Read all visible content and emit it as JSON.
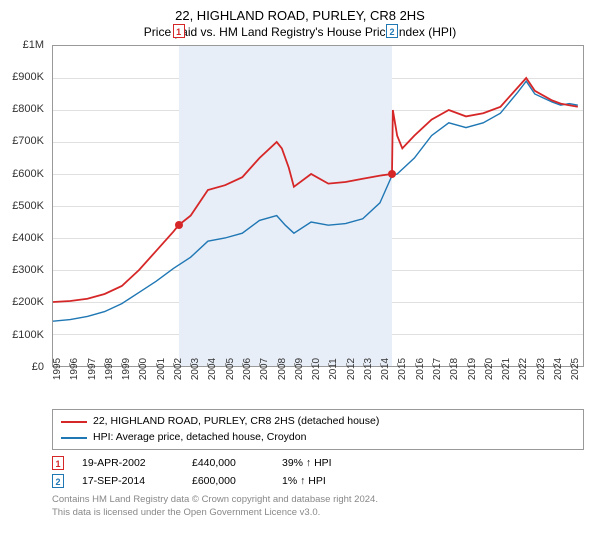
{
  "title": "22, HIGHLAND ROAD, PURLEY, CR8 2HS",
  "subtitle": "Price paid vs. HM Land Registry's House Price Index (HPI)",
  "chart": {
    "type": "line",
    "background_color": "#ffffff",
    "grid_color": "#e0e0e0",
    "axis_color": "#999999",
    "shaded_color": "#e8eef8",
    "x_years": [
      1995,
      1996,
      1997,
      1998,
      1999,
      2000,
      2001,
      2002,
      2003,
      2004,
      2005,
      2006,
      2007,
      2008,
      2009,
      2010,
      2011,
      2012,
      2013,
      2014,
      2015,
      2016,
      2017,
      2018,
      2019,
      2020,
      2021,
      2022,
      2023,
      2024,
      2025
    ],
    "xlim": [
      1995,
      2025.8
    ],
    "y_ticks": [
      "£0",
      "£100K",
      "£200K",
      "£300K",
      "£400K",
      "£500K",
      "£600K",
      "£700K",
      "£800K",
      "£900K",
      "£1M"
    ],
    "ylim": [
      0,
      1000000
    ],
    "shaded_start": 2002.3,
    "shaded_end": 2014.7,
    "sale_marker_top": -22,
    "series": [
      {
        "name": "22, HIGHLAND ROAD, PURLEY, CR8 2HS (detached house)",
        "color": "#d62728",
        "line_width": 1.8,
        "points": [
          [
            1995,
            200000
          ],
          [
            1996,
            203000
          ],
          [
            1997,
            210000
          ],
          [
            1998,
            225000
          ],
          [
            1999,
            250000
          ],
          [
            2000,
            300000
          ],
          [
            2001,
            360000
          ],
          [
            2002,
            420000
          ],
          [
            2002.3,
            440000
          ],
          [
            2003,
            470000
          ],
          [
            2004,
            550000
          ],
          [
            2005,
            565000
          ],
          [
            2006,
            590000
          ],
          [
            2007,
            650000
          ],
          [
            2008,
            700000
          ],
          [
            2008.3,
            680000
          ],
          [
            2008.7,
            620000
          ],
          [
            2009,
            560000
          ],
          [
            2010,
            600000
          ],
          [
            2011,
            570000
          ],
          [
            2012,
            575000
          ],
          [
            2013,
            585000
          ],
          [
            2014,
            595000
          ],
          [
            2014.7,
            600000
          ],
          [
            2014.75,
            800000
          ],
          [
            2015,
            720000
          ],
          [
            2015.3,
            680000
          ],
          [
            2016,
            720000
          ],
          [
            2017,
            770000
          ],
          [
            2018,
            800000
          ],
          [
            2019,
            780000
          ],
          [
            2020,
            790000
          ],
          [
            2021,
            810000
          ],
          [
            2022,
            870000
          ],
          [
            2022.5,
            900000
          ],
          [
            2023,
            860000
          ],
          [
            2024,
            830000
          ],
          [
            2024.5,
            820000
          ],
          [
            2025,
            815000
          ],
          [
            2025.5,
            810000
          ]
        ]
      },
      {
        "name": "HPI: Average price, detached house, Croydon",
        "color": "#1f77b4",
        "line_width": 1.4,
        "points": [
          [
            1995,
            140000
          ],
          [
            1996,
            145000
          ],
          [
            1997,
            155000
          ],
          [
            1998,
            170000
          ],
          [
            1999,
            195000
          ],
          [
            2000,
            230000
          ],
          [
            2001,
            265000
          ],
          [
            2002,
            305000
          ],
          [
            2003,
            340000
          ],
          [
            2004,
            390000
          ],
          [
            2005,
            400000
          ],
          [
            2006,
            415000
          ],
          [
            2007,
            455000
          ],
          [
            2008,
            470000
          ],
          [
            2008.5,
            440000
          ],
          [
            2009,
            415000
          ],
          [
            2010,
            450000
          ],
          [
            2011,
            440000
          ],
          [
            2012,
            445000
          ],
          [
            2013,
            460000
          ],
          [
            2014,
            510000
          ],
          [
            2014.7,
            595000
          ],
          [
            2015,
            600000
          ],
          [
            2016,
            650000
          ],
          [
            2017,
            720000
          ],
          [
            2018,
            760000
          ],
          [
            2019,
            745000
          ],
          [
            2020,
            760000
          ],
          [
            2021,
            790000
          ],
          [
            2022,
            855000
          ],
          [
            2022.5,
            890000
          ],
          [
            2023,
            850000
          ],
          [
            2024,
            825000
          ],
          [
            2024.5,
            815000
          ],
          [
            2025,
            820000
          ],
          [
            2025.5,
            815000
          ]
        ]
      }
    ],
    "sale_points": [
      {
        "n": "1",
        "x": 2002.3,
        "y": 440000,
        "color": "#d62728"
      },
      {
        "n": "2",
        "x": 2014.7,
        "y": 600000,
        "color": "#1f77b4"
      }
    ]
  },
  "legend": [
    {
      "color": "#d62728",
      "label": "22, HIGHLAND ROAD, PURLEY, CR8 2HS (detached house)"
    },
    {
      "color": "#1f77b4",
      "label": "HPI: Average price, detached house, Croydon"
    }
  ],
  "sales": [
    {
      "n": "1",
      "color": "#d62728",
      "date": "19-APR-2002",
      "price": "£440,000",
      "delta": "39% ↑ HPI"
    },
    {
      "n": "2",
      "color": "#1f77b4",
      "date": "17-SEP-2014",
      "price": "£600,000",
      "delta": "1% ↑ HPI"
    }
  ],
  "footnote1": "Contains HM Land Registry data © Crown copyright and database right 2024.",
  "footnote2": "This data is licensed under the Open Government Licence v3.0."
}
